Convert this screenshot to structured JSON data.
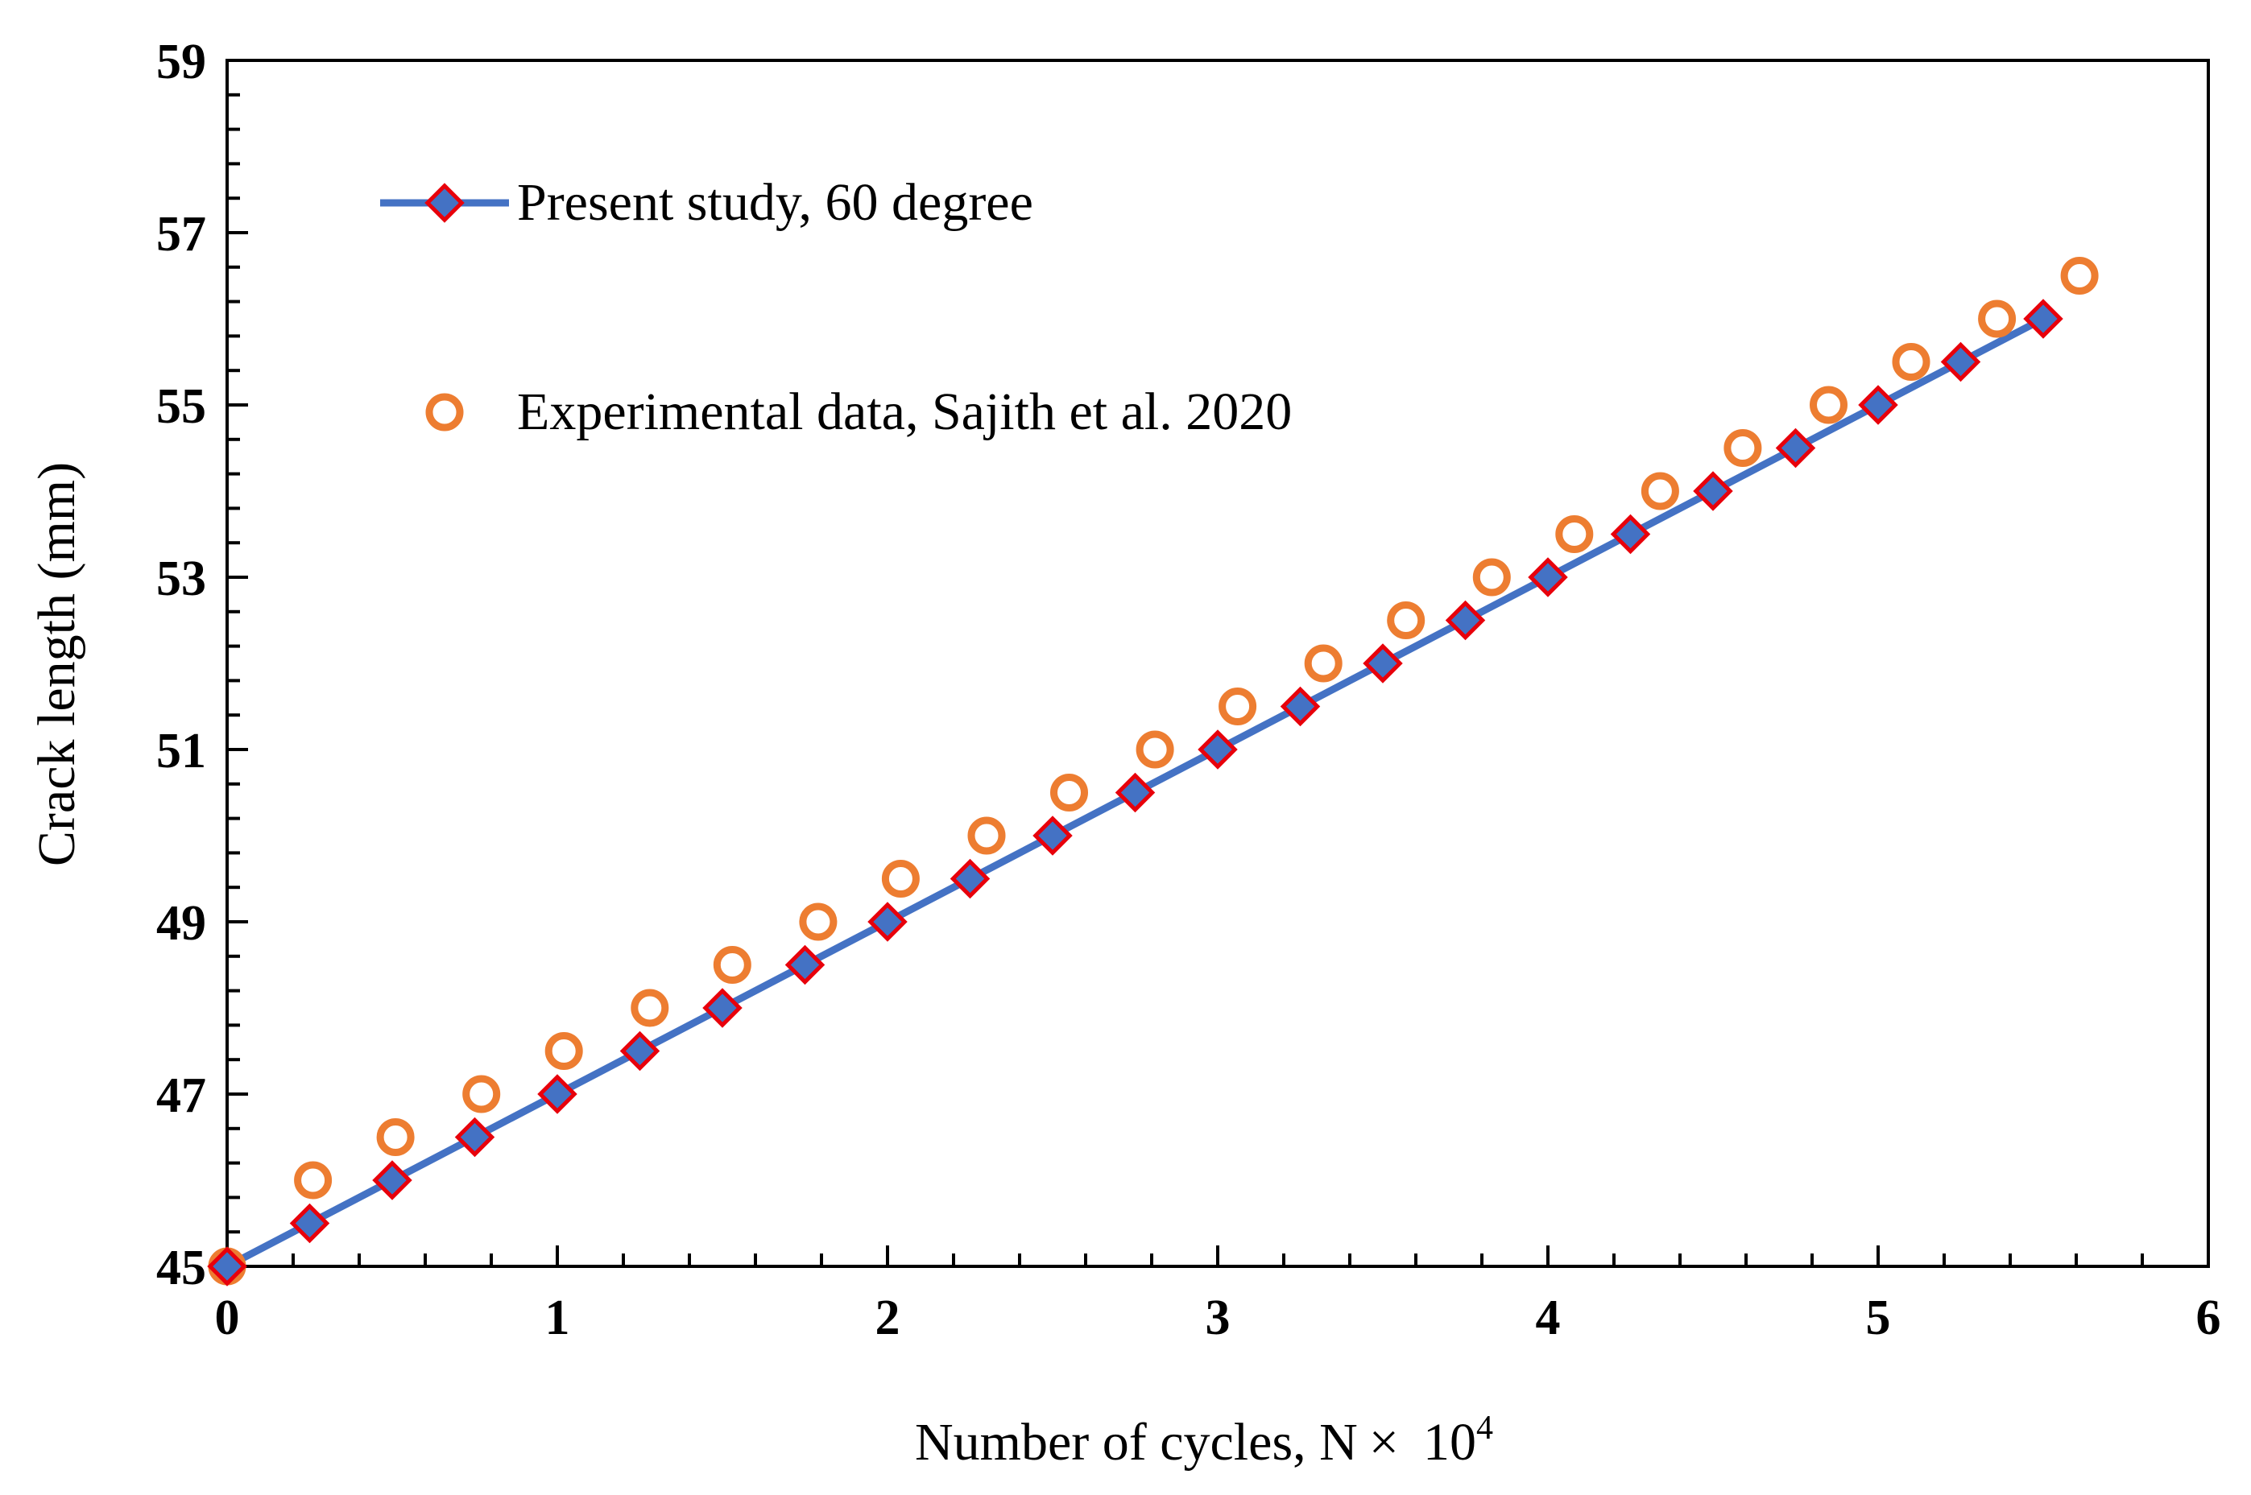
{
  "colors": {
    "model_line": "#4472C4",
    "model_marker_fill": "#4472C4",
    "model_marker_edge": "#E8000B",
    "experimental_marker": "#ED7D31",
    "axis": "#000000"
  },
  "chart_data": {
    "type": "line",
    "title": "",
    "xlabel_main": "Number of cycles, N",
    "xlabel_times": "×",
    "xlabel_base": "10",
    "xlabel_exp": "4",
    "ylabel": "Crack length (mm)",
    "xlim": [
      0,
      6
    ],
    "ylim": [
      45,
      59
    ],
    "x_ticks": [
      "0",
      "1",
      "2",
      "3",
      "4",
      "5",
      "6"
    ],
    "y_ticks": [
      "45",
      "47",
      "49",
      "51",
      "53",
      "55",
      "57",
      "59"
    ],
    "legend_position": "top-left",
    "series": [
      {
        "name": "Present study, 60 degree",
        "style": "line-with-diamond-markers",
        "x": [
          0,
          0.25,
          0.5,
          0.75,
          1.0,
          1.25,
          1.5,
          1.75,
          2.0,
          2.25,
          2.5,
          2.75,
          3.0,
          3.25,
          3.5,
          3.75,
          4.0,
          4.25,
          4.5,
          4.75,
          5.0,
          5.25,
          5.5
        ],
        "y": [
          45,
          45.5,
          46,
          46.5,
          47,
          47.5,
          48,
          48.5,
          49,
          49.5,
          50,
          50.5,
          51,
          51.5,
          52,
          52.5,
          53,
          53.5,
          54,
          54.5,
          55,
          55.5,
          56
        ]
      },
      {
        "name": "Experimental data, Sajith et al. 2020",
        "style": "open-circle-markers",
        "x": [
          0,
          0.26,
          0.51,
          0.77,
          1.02,
          1.28,
          1.53,
          1.79,
          2.04,
          2.3,
          2.55,
          2.81,
          3.06,
          3.32,
          3.57,
          3.83,
          4.08,
          4.34,
          4.59,
          4.85,
          5.1,
          5.36,
          5.61
        ],
        "y": [
          45,
          46,
          46.5,
          47,
          47.5,
          48,
          48.5,
          49,
          49.5,
          50,
          50.5,
          51,
          51.5,
          52,
          52.5,
          53,
          53.5,
          54,
          54.5,
          55,
          55.5,
          56,
          56.5
        ]
      }
    ]
  }
}
